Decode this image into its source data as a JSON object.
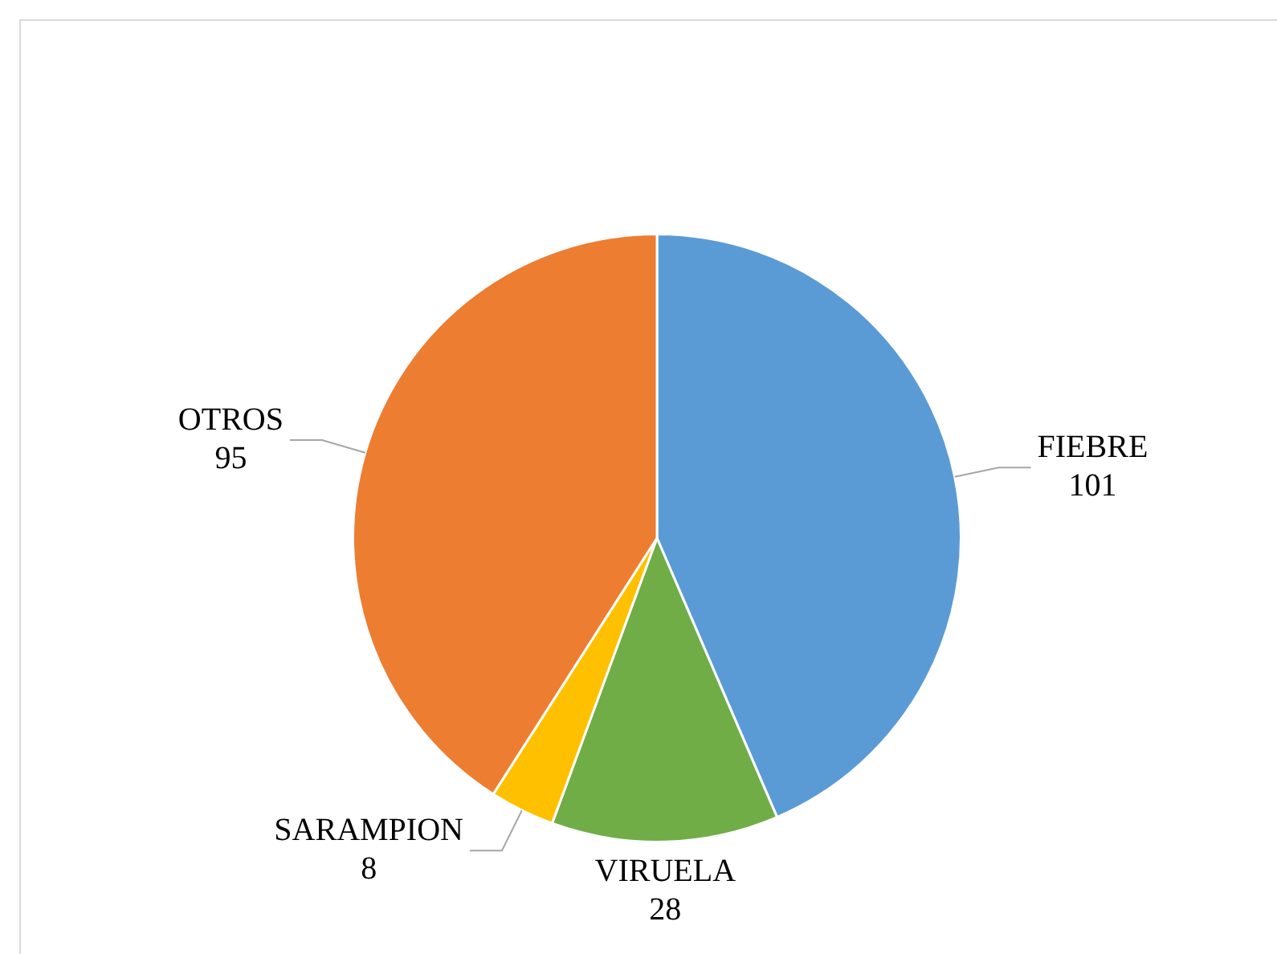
{
  "chart_data": {
    "type": "pie",
    "categories": [
      "FIEBRE",
      "VIRUELA",
      "SARAMPION",
      "OTROS"
    ],
    "values": [
      101,
      28,
      8,
      95
    ],
    "colors": [
      "#5b9bd5",
      "#70ad47",
      "#ffc000",
      "#ed7d31"
    ],
    "data_labels": true
  }
}
